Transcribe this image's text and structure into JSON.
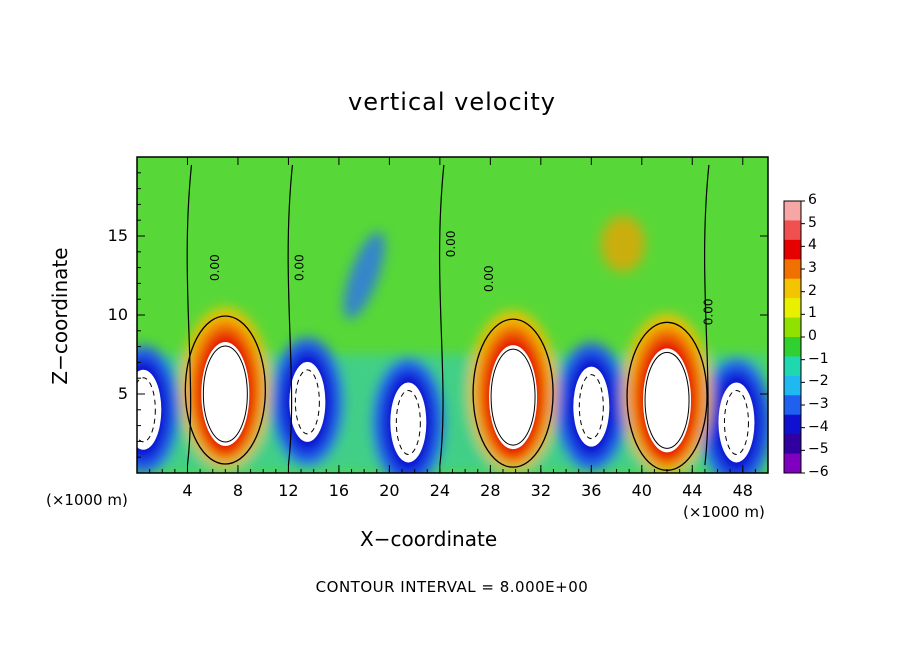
{
  "chart_data": {
    "type": "heatmap",
    "title": "vertical velocity",
    "xlabel": "X−coordinate",
    "ylabel": "Z−coordinate",
    "x_unit_left": "(×1000 m)",
    "x_unit_right": "(×1000 m)",
    "footer": "CONTOUR INTERVAL = 8.000E+00",
    "xlim": [
      0,
      50
    ],
    "ylim": [
      0,
      20
    ],
    "x_ticks": [
      "4",
      "8",
      "12",
      "16",
      "20",
      "24",
      "28",
      "32",
      "36",
      "40",
      "44",
      "48"
    ],
    "y_ticks": [
      "5",
      "10",
      "15"
    ],
    "colorbar": {
      "ticks": [
        "6",
        "5",
        "4",
        "3",
        "2",
        "1",
        "0",
        "−1",
        "−2",
        "−3",
        "−4",
        "−5",
        "−6"
      ],
      "colors": [
        "#f7a6a6",
        "#f05050",
        "#e60000",
        "#f07000",
        "#f5c400",
        "#e8f000",
        "#90e000",
        "#30d030",
        "#20d8b0",
        "#20b8f0",
        "#2060f0",
        "#1010d0",
        "#3000a0",
        "#8000c0"
      ]
    },
    "contour_labels": [
      "0.00",
      "0.00",
      "0.00",
      "0.00",
      "0.00"
    ],
    "updrafts": [
      {
        "x": 7,
        "z": 5,
        "w": 12
      },
      {
        "x": 29.8,
        "z": 4.8,
        "w": 14
      },
      {
        "x": 42,
        "z": 4.6,
        "w": 13
      }
    ],
    "downdrafts": [
      {
        "x": 13.5,
        "z": 4.5,
        "w": -10
      },
      {
        "x": 21.5,
        "z": 3.2,
        "w": -9
      },
      {
        "x": 36,
        "z": 4.2,
        "w": -10
      },
      {
        "x": 47.5,
        "z": 3.2,
        "w": -9
      },
      {
        "x": 0.5,
        "z": 4,
        "w": -9
      }
    ]
  }
}
